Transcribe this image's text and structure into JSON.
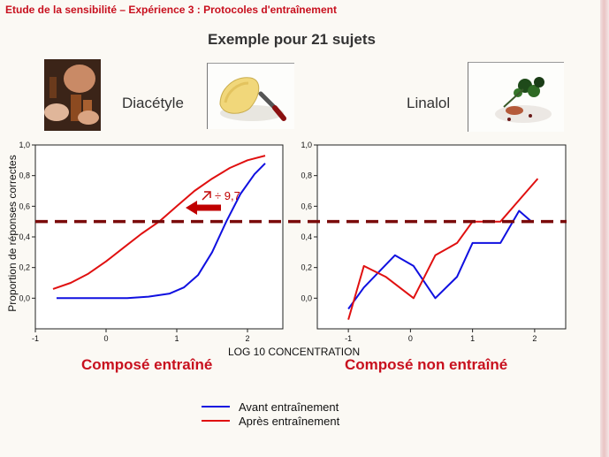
{
  "header": {
    "text": "Etude de la sensibilité – Expérience 3 : Protocoles d'entraînement"
  },
  "subtitle": "Exemple pour 21 sujets",
  "compounds": [
    {
      "name": "Diacétyle"
    },
    {
      "name": "Linalol"
    }
  ],
  "axes": {
    "xlabel": "LOG 10 CONCENTRATION",
    "ylabel": "Proportion de réponses correctes"
  },
  "annotation": {
    "text": "÷ 9,7",
    "color": "#c00000"
  },
  "legend": [
    {
      "name": "Avant entraînement",
      "color": "#1010e0"
    },
    {
      "name": "Après entraînement",
      "color": "#e01010"
    }
  ],
  "chart_data": [
    {
      "type": "line",
      "caption": "Composé entraîné",
      "xlim": [
        -1,
        2.5
      ],
      "ylim": [
        -0.2,
        1.0
      ],
      "xticks": [
        "-1",
        "0",
        "1",
        "2"
      ],
      "yticks": [
        "0,0",
        "0,2",
        "0,4",
        "0,6",
        "0,8",
        "1,0"
      ],
      "threshold": 0.5,
      "series": [
        {
          "name": "Avant entraînement",
          "color": "#1010e0",
          "x": [
            -0.7,
            -0.3,
            0.0,
            0.3,
            0.6,
            0.9,
            1.1,
            1.3,
            1.5,
            1.7,
            1.9,
            2.1,
            2.25
          ],
          "y": [
            0.0,
            0.0,
            0.0,
            0.0,
            0.01,
            0.03,
            0.07,
            0.15,
            0.3,
            0.5,
            0.68,
            0.81,
            0.88
          ]
        },
        {
          "name": "Après entraînement",
          "color": "#e01010",
          "x": [
            -0.75,
            -0.5,
            -0.25,
            0.0,
            0.25,
            0.5,
            0.75,
            1.0,
            1.25,
            1.5,
            1.75,
            2.0,
            2.25
          ],
          "y": [
            0.06,
            0.1,
            0.16,
            0.24,
            0.33,
            0.42,
            0.5,
            0.6,
            0.7,
            0.78,
            0.85,
            0.9,
            0.93
          ]
        }
      ]
    },
    {
      "type": "line",
      "caption": "Composé non entraîné",
      "xlim": [
        -1.5,
        2.5
      ],
      "ylim": [
        -0.2,
        1.0
      ],
      "xticks": [
        "-1",
        "0",
        "1",
        "2"
      ],
      "yticks": [
        "0,0",
        "0,2",
        "0,4",
        "0,6",
        "0,8",
        "1,0"
      ],
      "threshold": 0.5,
      "series": [
        {
          "name": "Avant entraînement",
          "color": "#1010e0",
          "x": [
            -1.0,
            -0.75,
            -0.25,
            0.05,
            0.4,
            0.75,
            1.0,
            1.45,
            1.75,
            1.95
          ],
          "y": [
            -0.07,
            0.07,
            0.28,
            0.21,
            0.0,
            0.14,
            0.36,
            0.36,
            0.57,
            0.5
          ]
        },
        {
          "name": "Après entraînement",
          "color": "#e01010",
          "x": [
            -1.0,
            -0.75,
            -0.4,
            0.05,
            0.4,
            0.75,
            1.0,
            1.45,
            1.75,
            2.05
          ],
          "y": [
            -0.14,
            0.21,
            0.14,
            0.0,
            0.28,
            0.36,
            0.5,
            0.5,
            0.64,
            0.78
          ]
        }
      ]
    }
  ]
}
